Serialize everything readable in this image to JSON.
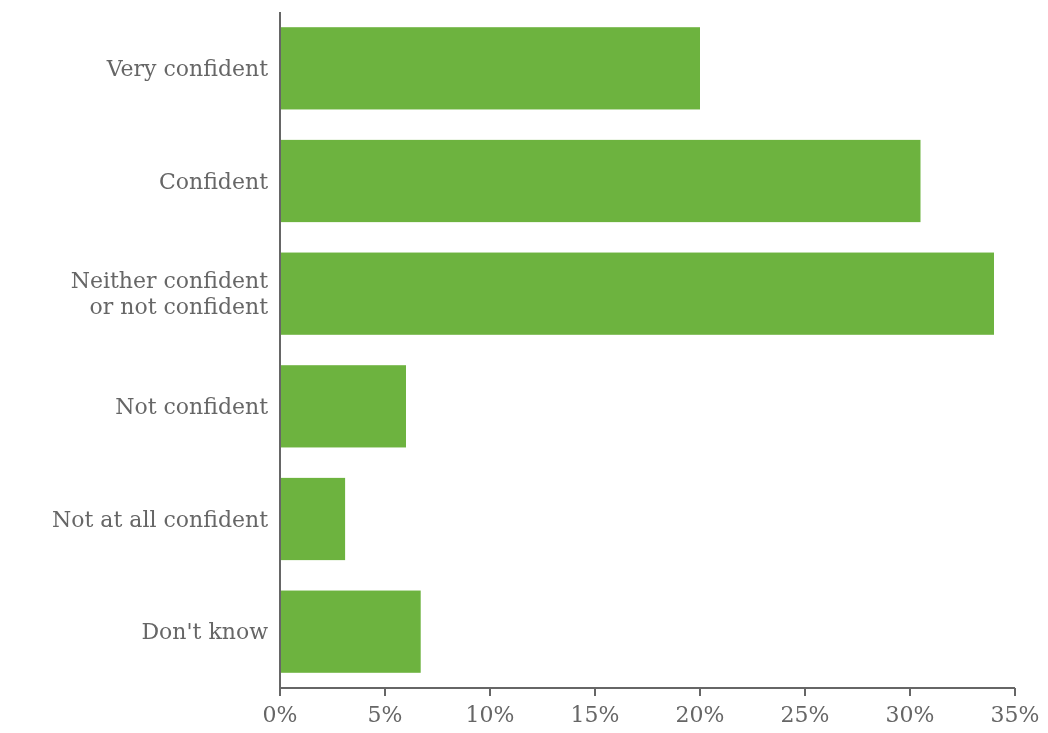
{
  "chart_data": {
    "type": "bar",
    "orientation": "horizontal",
    "categories": [
      "Very confident",
      "Confident",
      "Neither confident or not confident",
      "Not confident",
      "Not at all confident",
      "Don't know"
    ],
    "values": [
      20,
      30.5,
      34,
      6,
      3.1,
      6.7
    ],
    "color": "#6db33f",
    "xlim": [
      0,
      35
    ],
    "xticks": [
      {
        "value": 0,
        "label": "0%"
      },
      {
        "value": 5,
        "label": "5%"
      },
      {
        "value": 10,
        "label": "10%"
      },
      {
        "value": 15,
        "label": "15%"
      },
      {
        "value": 20,
        "label": "20%"
      },
      {
        "value": 25,
        "label": "25%"
      },
      {
        "value": 30,
        "label": "30%"
      },
      {
        "value": 35,
        "label": "35%"
      }
    ],
    "grid": false
  }
}
